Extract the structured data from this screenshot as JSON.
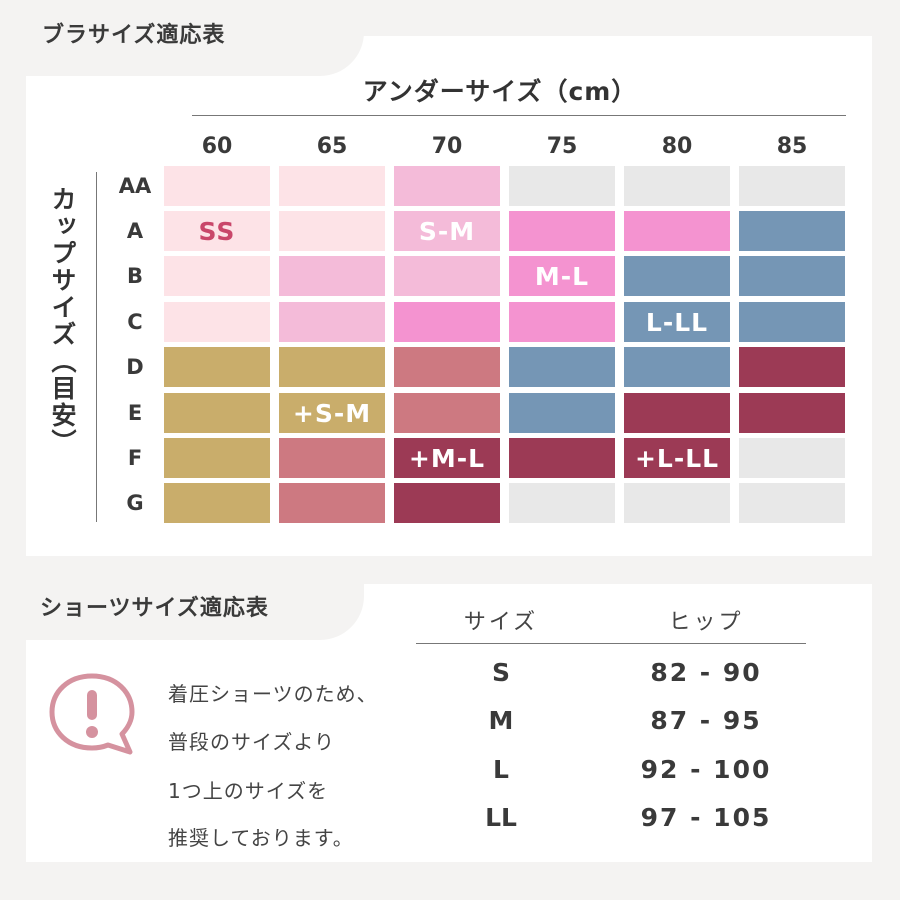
{
  "bra_section": {
    "title": "ブラサイズ適応表",
    "under_size_label": "アンダーサイズ（cm）",
    "cup_size_label": "カップサイズ（目安）",
    "columns": [
      "60",
      "65",
      "70",
      "75",
      "80",
      "85"
    ],
    "rows": [
      "AA",
      "A",
      "B",
      "C",
      "D",
      "E",
      "F",
      "G"
    ],
    "grid": [
      [
        "ss_light",
        "ss_light",
        "sm_light",
        "none",
        "none",
        "none"
      ],
      [
        "ss_light",
        "ss_light",
        "sm_light",
        "ml",
        "ml",
        "lll"
      ],
      [
        "ss_light",
        "sm_light",
        "sm_light",
        "ml",
        "lll",
        "lll"
      ],
      [
        "ss_light",
        "sm_light",
        "ml",
        "ml",
        "lll",
        "lll"
      ],
      [
        "psm",
        "psm",
        "pml",
        "lll",
        "lll",
        "plll"
      ],
      [
        "psm",
        "psm",
        "pml",
        "lll",
        "plll",
        "plll"
      ],
      [
        "psm",
        "pml",
        "plll",
        "plll",
        "plll",
        "none"
      ],
      [
        "psm",
        "pml",
        "plll",
        "none",
        "none",
        "none"
      ]
    ],
    "labels": [
      {
        "text": "SS",
        "row": 1,
        "col": 0
      },
      {
        "text": "S-M",
        "row": 1,
        "col": 2
      },
      {
        "text": "M-L",
        "row": 2,
        "col": 3
      },
      {
        "text": "L-LL",
        "row": 3,
        "col": 4
      },
      {
        "text": "+S-M",
        "row": 5,
        "col": 1
      },
      {
        "text": "+M-L",
        "row": 6,
        "col": 2
      },
      {
        "text": "+L-LL",
        "row": 6,
        "col": 4
      }
    ],
    "colors": {
      "ss_light": "#fde3e7",
      "sm_light": "#f4bbd9",
      "ml": "#f493d0",
      "lll": "#7596b5",
      "psm": "#c9ad6b",
      "pml": "#cd7981",
      "plll": "#9c3a55",
      "none": "#e8e8e8",
      "ss_text": "#c9476a"
    }
  },
  "shorts_section": {
    "title": "ショーツサイズ適応表",
    "note_lines": [
      "着圧ショーツのため、",
      "普段のサイズより",
      "1つ上のサイズを",
      "推奨しております。"
    ],
    "icon": "exclamation-speech-bubble-icon",
    "icon_color": "#d5929f",
    "headers": {
      "size": "サイズ",
      "hip": "ヒップ"
    },
    "rows": [
      {
        "size": "S",
        "hip": "82 - 90"
      },
      {
        "size": "M",
        "hip": "87 - 95"
      },
      {
        "size": "L",
        "hip": "92 - 100"
      },
      {
        "size": "LL",
        "hip": "97 - 105"
      }
    ]
  }
}
